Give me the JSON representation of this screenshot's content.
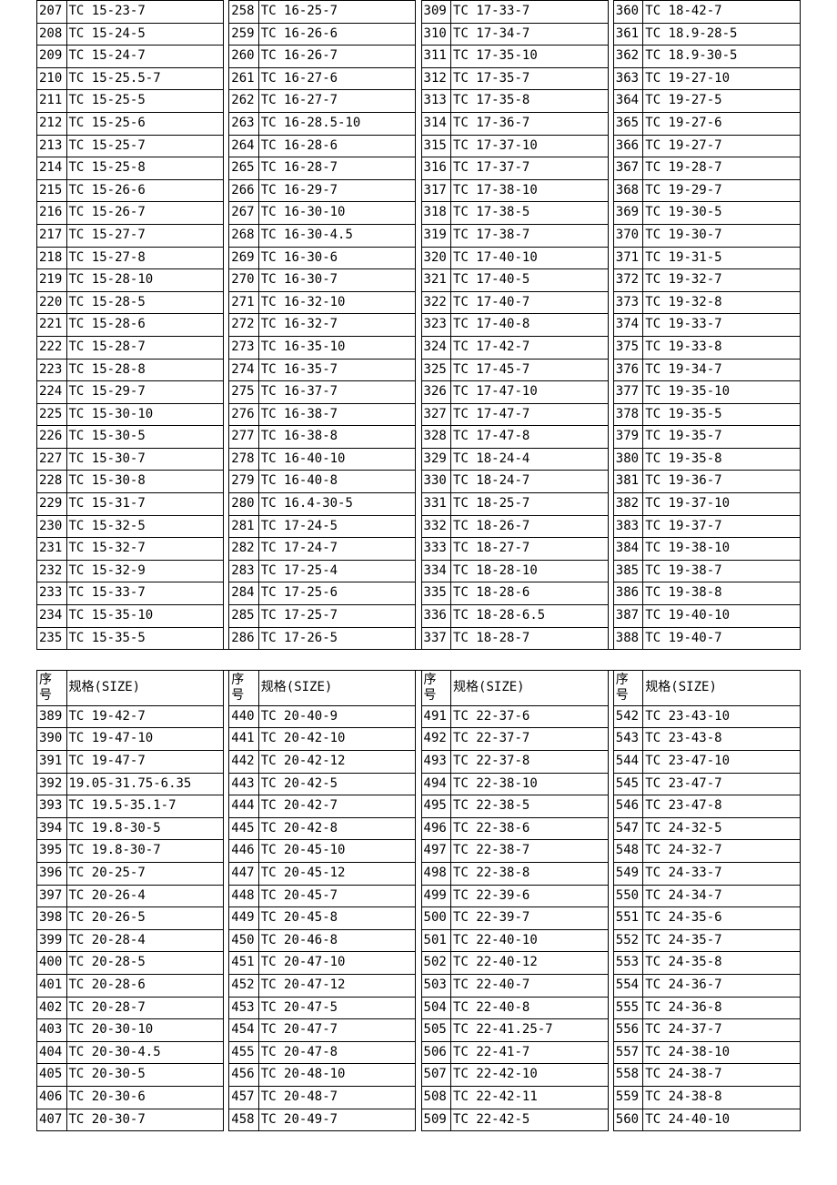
{
  "header": {
    "seq": "序号",
    "spec": "规格(SIZE)"
  },
  "block1": {
    "col1": [
      {
        "n": "207",
        "s": "TC  15-23-7"
      },
      {
        "n": "208",
        "s": "TC  15-24-5"
      },
      {
        "n": "209",
        "s": "TC  15-24-7"
      },
      {
        "n": "210",
        "s": "TC  15-25.5-7"
      },
      {
        "n": "211",
        "s": "TC  15-25-5"
      },
      {
        "n": "212",
        "s": "TC  15-25-6"
      },
      {
        "n": "213",
        "s": "TC  15-25-7"
      },
      {
        "n": "214",
        "s": "TC  15-25-8"
      },
      {
        "n": "215",
        "s": "TC  15-26-6"
      },
      {
        "n": "216",
        "s": "TC  15-26-7"
      },
      {
        "n": "217",
        "s": "TC  15-27-7"
      },
      {
        "n": "218",
        "s": "TC  15-27-8"
      },
      {
        "n": "219",
        "s": "TC  15-28-10"
      },
      {
        "n": "220",
        "s": "TC  15-28-5"
      },
      {
        "n": "221",
        "s": "TC  15-28-6"
      },
      {
        "n": "222",
        "s": "TC  15-28-7"
      },
      {
        "n": "223",
        "s": "TC  15-28-8"
      },
      {
        "n": "224",
        "s": "TC  15-29-7"
      },
      {
        "n": "225",
        "s": "TC  15-30-10"
      },
      {
        "n": "226",
        "s": "TC  15-30-5"
      },
      {
        "n": "227",
        "s": "TC  15-30-7"
      },
      {
        "n": "228",
        "s": "TC  15-30-8"
      },
      {
        "n": "229",
        "s": "TC  15-31-7"
      },
      {
        "n": "230",
        "s": "TC  15-32-5"
      },
      {
        "n": "231",
        "s": "TC  15-32-7"
      },
      {
        "n": "232",
        "s": "TC  15-32-9"
      },
      {
        "n": "233",
        "s": "TC  15-33-7"
      },
      {
        "n": "234",
        "s": "TC  15-35-10"
      },
      {
        "n": "235",
        "s": "TC  15-35-5"
      }
    ],
    "col2": [
      {
        "n": "258",
        "s": "TC  16-25-7"
      },
      {
        "n": "259",
        "s": "TC  16-26-6"
      },
      {
        "n": "260",
        "s": "TC  16-26-7"
      },
      {
        "n": "261",
        "s": "TC  16-27-6"
      },
      {
        "n": "262",
        "s": "TC  16-27-7"
      },
      {
        "n": "263",
        "s": "TC  16-28.5-10"
      },
      {
        "n": "264",
        "s": "TC  16-28-6"
      },
      {
        "n": "265",
        "s": "TC  16-28-7"
      },
      {
        "n": "266",
        "s": "TC  16-29-7"
      },
      {
        "n": "267",
        "s": "TC  16-30-10"
      },
      {
        "n": "268",
        "s": "TC  16-30-4.5"
      },
      {
        "n": "269",
        "s": "TC  16-30-6"
      },
      {
        "n": "270",
        "s": "TC  16-30-7"
      },
      {
        "n": "271",
        "s": "TC  16-32-10"
      },
      {
        "n": "272",
        "s": "TC  16-32-7"
      },
      {
        "n": "273",
        "s": "TC  16-35-10"
      },
      {
        "n": "274",
        "s": "TC  16-35-7"
      },
      {
        "n": "275",
        "s": "TC  16-37-7"
      },
      {
        "n": "276",
        "s": "TC  16-38-7"
      },
      {
        "n": "277",
        "s": "TC  16-38-8"
      },
      {
        "n": "278",
        "s": "TC  16-40-10"
      },
      {
        "n": "279",
        "s": "TC  16-40-8"
      },
      {
        "n": "280",
        "s": "TC  16.4-30-5"
      },
      {
        "n": "281",
        "s": "TC  17-24-5"
      },
      {
        "n": "282",
        "s": "TC  17-24-7"
      },
      {
        "n": "283",
        "s": "TC  17-25-4"
      },
      {
        "n": "284",
        "s": "TC  17-25-6"
      },
      {
        "n": "285",
        "s": "TC  17-25-7"
      },
      {
        "n": "286",
        "s": "TC  17-26-5"
      }
    ],
    "col3": [
      {
        "n": "309",
        "s": "TC  17-33-7"
      },
      {
        "n": "310",
        "s": "TC  17-34-7"
      },
      {
        "n": "311",
        "s": "TC  17-35-10"
      },
      {
        "n": "312",
        "s": "TC  17-35-7"
      },
      {
        "n": "313",
        "s": "TC  17-35-8"
      },
      {
        "n": "314",
        "s": "TC  17-36-7"
      },
      {
        "n": "315",
        "s": "TC  17-37-10"
      },
      {
        "n": "316",
        "s": "TC  17-37-7"
      },
      {
        "n": "317",
        "s": "TC  17-38-10"
      },
      {
        "n": "318",
        "s": "TC  17-38-5"
      },
      {
        "n": "319",
        "s": "TC  17-38-7"
      },
      {
        "n": "320",
        "s": "TC  17-40-10"
      },
      {
        "n": "321",
        "s": "TC  17-40-5"
      },
      {
        "n": "322",
        "s": "TC  17-40-7"
      },
      {
        "n": "323",
        "s": "TC  17-40-8"
      },
      {
        "n": "324",
        "s": "TC  17-42-7"
      },
      {
        "n": "325",
        "s": "TC  17-45-7"
      },
      {
        "n": "326",
        "s": "TC  17-47-10"
      },
      {
        "n": "327",
        "s": "TC  17-47-7"
      },
      {
        "n": "328",
        "s": "TC  17-47-8"
      },
      {
        "n": "329",
        "s": "TC  18-24-4"
      },
      {
        "n": "330",
        "s": "TC  18-24-7"
      },
      {
        "n": "331",
        "s": "TC  18-25-7"
      },
      {
        "n": "332",
        "s": "TC  18-26-7"
      },
      {
        "n": "333",
        "s": "TC  18-27-7"
      },
      {
        "n": "334",
        "s": "TC  18-28-10"
      },
      {
        "n": "335",
        "s": "TC  18-28-6"
      },
      {
        "n": "336",
        "s": "TC  18-28-6.5"
      },
      {
        "n": "337",
        "s": "TC  18-28-7"
      }
    ],
    "col4": [
      {
        "n": "360",
        "s": "TC  18-42-7"
      },
      {
        "n": "361",
        "s": "TC  18.9-28-5"
      },
      {
        "n": "362",
        "s": "TC  18.9-30-5"
      },
      {
        "n": "363",
        "s": "TC  19-27-10"
      },
      {
        "n": "364",
        "s": "TC  19-27-5"
      },
      {
        "n": "365",
        "s": "TC  19-27-6"
      },
      {
        "n": "366",
        "s": "TC  19-27-7"
      },
      {
        "n": "367",
        "s": "TC  19-28-7"
      },
      {
        "n": "368",
        "s": "TC  19-29-7"
      },
      {
        "n": "369",
        "s": "TC  19-30-5"
      },
      {
        "n": "370",
        "s": "TC  19-30-7"
      },
      {
        "n": "371",
        "s": "TC  19-31-5"
      },
      {
        "n": "372",
        "s": "TC  19-32-7"
      },
      {
        "n": "373",
        "s": "TC  19-32-8"
      },
      {
        "n": "374",
        "s": "TC  19-33-7"
      },
      {
        "n": "375",
        "s": "TC  19-33-8"
      },
      {
        "n": "376",
        "s": "TC  19-34-7"
      },
      {
        "n": "377",
        "s": "TC  19-35-10"
      },
      {
        "n": "378",
        "s": "TC  19-35-5"
      },
      {
        "n": "379",
        "s": "TC  19-35-7"
      },
      {
        "n": "380",
        "s": "TC  19-35-8"
      },
      {
        "n": "381",
        "s": "TC  19-36-7"
      },
      {
        "n": "382",
        "s": "TC  19-37-10"
      },
      {
        "n": "383",
        "s": "TC  19-37-7"
      },
      {
        "n": "384",
        "s": "TC  19-38-10"
      },
      {
        "n": "385",
        "s": "TC  19-38-7"
      },
      {
        "n": "386",
        "s": "TC  19-38-8"
      },
      {
        "n": "387",
        "s": "TC  19-40-10"
      },
      {
        "n": "388",
        "s": "TC  19-40-7"
      }
    ]
  },
  "block2": {
    "col1": [
      {
        "n": "389",
        "s": "TC  19-42-7"
      },
      {
        "n": "390",
        "s": "TC  19-47-10"
      },
      {
        "n": "391",
        "s": "TC  19-47-7"
      },
      {
        "n": "392",
        "s": "19.05-31.75-6.35"
      },
      {
        "n": "393",
        "s": "TC  19.5-35.1-7"
      },
      {
        "n": "394",
        "s": "TC  19.8-30-5"
      },
      {
        "n": "395",
        "s": "TC  19.8-30-7"
      },
      {
        "n": "396",
        "s": "TC  20-25-7"
      },
      {
        "n": "397",
        "s": "TC  20-26-4"
      },
      {
        "n": "398",
        "s": "TC  20-26-5"
      },
      {
        "n": "399",
        "s": "TC  20-28-4"
      },
      {
        "n": "400",
        "s": "TC  20-28-5"
      },
      {
        "n": "401",
        "s": "TC  20-28-6"
      },
      {
        "n": "402",
        "s": "TC  20-28-7"
      },
      {
        "n": "403",
        "s": "TC  20-30-10"
      },
      {
        "n": "404",
        "s": "TC  20-30-4.5"
      },
      {
        "n": "405",
        "s": "TC  20-30-5"
      },
      {
        "n": "406",
        "s": "TC  20-30-6"
      },
      {
        "n": "407",
        "s": "TC  20-30-7"
      }
    ],
    "col2": [
      {
        "n": "440",
        "s": "TC  20-40-9"
      },
      {
        "n": "441",
        "s": "TC  20-42-10"
      },
      {
        "n": "442",
        "s": "TC  20-42-12"
      },
      {
        "n": "443",
        "s": "TC  20-42-5"
      },
      {
        "n": "444",
        "s": "TC  20-42-7"
      },
      {
        "n": "445",
        "s": "TC  20-42-8"
      },
      {
        "n": "446",
        "s": "TC  20-45-10"
      },
      {
        "n": "447",
        "s": "TC  20-45-12"
      },
      {
        "n": "448",
        "s": "TC  20-45-7"
      },
      {
        "n": "449",
        "s": "TC  20-45-8"
      },
      {
        "n": "450",
        "s": "TC  20-46-8"
      },
      {
        "n": "451",
        "s": "TC  20-47-10"
      },
      {
        "n": "452",
        "s": "TC  20-47-12"
      },
      {
        "n": "453",
        "s": "TC  20-47-5"
      },
      {
        "n": "454",
        "s": "TC  20-47-7"
      },
      {
        "n": "455",
        "s": "TC  20-47-8"
      },
      {
        "n": "456",
        "s": "TC  20-48-10"
      },
      {
        "n": "457",
        "s": "TC  20-48-7"
      },
      {
        "n": "458",
        "s": "TC  20-49-7"
      }
    ],
    "col3": [
      {
        "n": "491",
        "s": "TC  22-37-6"
      },
      {
        "n": "492",
        "s": "TC  22-37-7"
      },
      {
        "n": "493",
        "s": "TC  22-37-8"
      },
      {
        "n": "494",
        "s": "TC  22-38-10"
      },
      {
        "n": "495",
        "s": "TC  22-38-5"
      },
      {
        "n": "496",
        "s": "TC  22-38-6"
      },
      {
        "n": "497",
        "s": "TC  22-38-7"
      },
      {
        "n": "498",
        "s": "TC  22-38-8"
      },
      {
        "n": "499",
        "s": "TC  22-39-6"
      },
      {
        "n": "500",
        "s": "TC  22-39-7"
      },
      {
        "n": "501",
        "s": "TC  22-40-10"
      },
      {
        "n": "502",
        "s": "TC  22-40-12"
      },
      {
        "n": "503",
        "s": "TC  22-40-7"
      },
      {
        "n": "504",
        "s": "TC  22-40-8"
      },
      {
        "n": "505",
        "s": "TC  22-41.25-7"
      },
      {
        "n": "506",
        "s": "TC  22-41-7"
      },
      {
        "n": "507",
        "s": "TC  22-42-10"
      },
      {
        "n": "508",
        "s": "TC  22-42-11"
      },
      {
        "n": "509",
        "s": "TC  22-42-5"
      }
    ],
    "col4": [
      {
        "n": "542",
        "s": "TC  23-43-10"
      },
      {
        "n": "543",
        "s": "TC  23-43-8"
      },
      {
        "n": "544",
        "s": "TC  23-47-10"
      },
      {
        "n": "545",
        "s": "TC  23-47-7"
      },
      {
        "n": "546",
        "s": "TC  23-47-8"
      },
      {
        "n": "547",
        "s": "TC  24-32-5"
      },
      {
        "n": "548",
        "s": "TC  24-32-7"
      },
      {
        "n": "549",
        "s": "TC  24-33-7"
      },
      {
        "n": "550",
        "s": "TC  24-34-7"
      },
      {
        "n": "551",
        "s": "TC  24-35-6"
      },
      {
        "n": "552",
        "s": "TC  24-35-7"
      },
      {
        "n": "553",
        "s": "TC  24-35-8"
      },
      {
        "n": "554",
        "s": "TC  24-36-7"
      },
      {
        "n": "555",
        "s": "TC  24-36-8"
      },
      {
        "n": "556",
        "s": "TC  24-37-7"
      },
      {
        "n": "557",
        "s": "TC  24-38-10"
      },
      {
        "n": "558",
        "s": "TC  24-38-7"
      },
      {
        "n": "559",
        "s": "TC  24-38-8"
      },
      {
        "n": "560",
        "s": "TC  24-40-10"
      }
    ]
  }
}
